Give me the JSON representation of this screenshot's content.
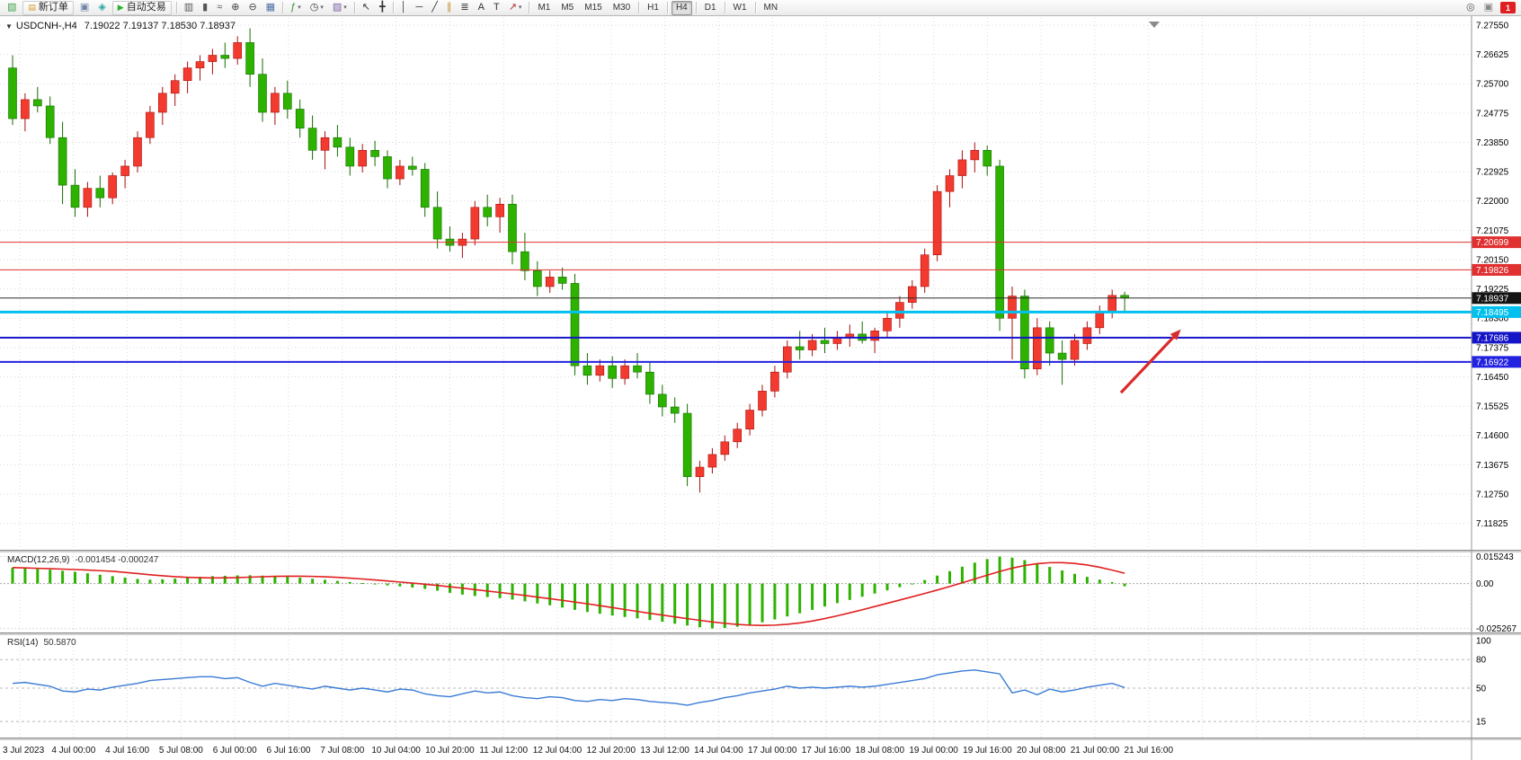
{
  "toolbar": {
    "left_items": [
      {
        "name": "new-chart-icon",
        "type": "icon",
        "glyph": "▧",
        "color": "#3fa34d"
      },
      {
        "name": "new-order-button",
        "type": "button",
        "glyph": "▤",
        "glyph_color": "#d79b2a",
        "label": "新订单"
      },
      {
        "name": "chart-windows-icon",
        "type": "icon",
        "glyph": "▣",
        "color": "#6f87a6"
      },
      {
        "name": "metaeditor-icon",
        "type": "icon",
        "glyph": "◈",
        "color": "#2aa7a7"
      },
      {
        "name": "autotrading-button",
        "type": "button",
        "glyph": "▶",
        "glyph_color": "#28b028",
        "label": "自动交易"
      },
      {
        "type": "sep"
      },
      {
        "name": "bar-chart-icon",
        "type": "icon",
        "glyph": "▥",
        "color": "#555555"
      },
      {
        "name": "candlestick-chart-icon",
        "type": "icon",
        "glyph": "▮",
        "color": "#555555"
      },
      {
        "name": "line-chart-icon",
        "type": "icon",
        "glyph": "≈",
        "color": "#555555"
      },
      {
        "name": "zoom-in-icon",
        "type": "icon",
        "glyph": "⊕",
        "color": "#444444"
      },
      {
        "name": "zoom-out-icon",
        "type": "icon",
        "glyph": "⊖",
        "color": "#444444"
      },
      {
        "name": "tile-windows-icon",
        "type": "icon",
        "glyph": "▦",
        "color": "#4a6fa5"
      },
      {
        "type": "sep"
      },
      {
        "name": "indicators-button",
        "type": "icon",
        "glyph": "ƒ",
        "color": "#2d8f2d",
        "dropdown": true
      },
      {
        "name": "periods-button",
        "type": "icon",
        "glyph": "◷",
        "color": "#444444",
        "dropdown": true
      },
      {
        "name": "templates-button",
        "type": "icon",
        "glyph": "▨",
        "color": "#7a5fa0",
        "dropdown": true
      },
      {
        "type": "sep"
      },
      {
        "name": "cursor-icon",
        "type": "icon",
        "glyph": "↖",
        "color": "#333333"
      },
      {
        "name": "crosshair-icon",
        "type": "icon",
        "glyph": "╋",
        "color": "#333333"
      },
      {
        "type": "sep"
      },
      {
        "name": "vertical-line-icon",
        "type": "icon",
        "glyph": "│",
        "color": "#333333"
      },
      {
        "name": "horizontal-line-icon",
        "type": "icon",
        "glyph": "─",
        "color": "#333333"
      },
      {
        "name": "trendline-icon",
        "type": "icon",
        "glyph": "╱",
        "color": "#333333"
      },
      {
        "name": "equidistant-channel-icon",
        "type": "icon",
        "glyph": "∥",
        "color": "#c58f2a"
      },
      {
        "name": "fibonacci-icon",
        "type": "icon",
        "glyph": "≣",
        "color": "#333333"
      },
      {
        "name": "text-icon",
        "type": "icon",
        "glyph": "A",
        "color": "#333333"
      },
      {
        "name": "text-label-icon",
        "type": "icon",
        "glyph": "T",
        "color": "#333333"
      },
      {
        "name": "arrows-icon",
        "type": "icon",
        "glyph": "↗",
        "color": "#b03030",
        "dropdown": true
      },
      {
        "type": "sep"
      }
    ],
    "timeframes": {
      "items": [
        "M1",
        "M5",
        "M15",
        "M30",
        "H1",
        "H4",
        "D1",
        "W1",
        "MN"
      ],
      "active": "H4"
    },
    "right_items": [
      {
        "name": "search-icon",
        "type": "icon",
        "glyph": "◎",
        "color": "#555555"
      },
      {
        "name": "chat-icon",
        "type": "icon",
        "glyph": "▣",
        "color": "#888888"
      },
      {
        "name": "notification-badge",
        "type": "badge",
        "label": "1",
        "color": "#e02020"
      }
    ]
  },
  "chart": {
    "symbol_title": "USDCNH-,H4",
    "ohlc_text": "7.19022 7.19137 7.18530 7.18937"
  },
  "chart_data": {
    "type": "candlestick",
    "symbol": "USDCNH-",
    "timeframe": "H4",
    "last_ohlc": {
      "open": 7.19022,
      "high": 7.19137,
      "low": 7.1853,
      "close": 7.18937
    },
    "price_axis_labels": [
      "7.27550",
      "7.26625",
      "7.25700",
      "7.24775",
      "7.23850",
      "7.22925",
      "7.22000",
      "7.21075",
      "7.20150",
      "7.19225",
      "7.18300",
      "7.17375",
      "7.16450",
      "7.15525",
      "7.14600",
      "7.13675",
      "7.12750",
      "7.11825"
    ],
    "time_axis_labels": [
      "3 Jul 2023",
      "4 Jul 00:00",
      "4 Jul 16:00",
      "5 Jul 08:00",
      "6 Jul 00:00",
      "6 Jul 16:00",
      "7 Jul 08:00",
      "10 Jul 04:00",
      "10 Jul 20:00",
      "11 Jul 12:00",
      "12 Jul 04:00",
      "12 Jul 20:00",
      "13 Jul 12:00",
      "14 Jul 04:00",
      "17 Jul 00:00",
      "17 Jul 16:00",
      "18 Jul 08:00",
      "19 Jul 00:00",
      "19 Jul 16:00",
      "20 Jul 08:00",
      "21 Jul 00:00",
      "21 Jul 16:00"
    ],
    "colors": {
      "bull": "#f23b2e",
      "bull_border": "#aa0e0e",
      "bear": "#2db200",
      "bear_border": "#156e00",
      "grid": "#d9d9d9",
      "macd_hist": "#2db200",
      "macd_signal": "#e02020",
      "rsi_line": "#3a7bd5"
    },
    "candles": [
      [
        7.262,
        7.266,
        7.244,
        7.246
      ],
      [
        7.246,
        7.254,
        7.242,
        7.252
      ],
      [
        7.252,
        7.256,
        7.248,
        7.25
      ],
      [
        7.25,
        7.253,
        7.238,
        7.24
      ],
      [
        7.24,
        7.245,
        7.219,
        7.225
      ],
      [
        7.225,
        7.23,
        7.215,
        7.218
      ],
      [
        7.218,
        7.226,
        7.215,
        7.224
      ],
      [
        7.224,
        7.228,
        7.218,
        7.221
      ],
      [
        7.221,
        7.229,
        7.219,
        7.228
      ],
      [
        7.228,
        7.233,
        7.224,
        7.231
      ],
      [
        7.231,
        7.242,
        7.229,
        7.24
      ],
      [
        7.24,
        7.25,
        7.238,
        7.248
      ],
      [
        7.248,
        7.256,
        7.244,
        7.254
      ],
      [
        7.254,
        7.26,
        7.25,
        7.258
      ],
      [
        7.258,
        7.264,
        7.254,
        7.262
      ],
      [
        7.262,
        7.266,
        7.258,
        7.264
      ],
      [
        7.264,
        7.268,
        7.26,
        7.266
      ],
      [
        7.266,
        7.27,
        7.262,
        7.265
      ],
      [
        7.265,
        7.272,
        7.263,
        7.27
      ],
      [
        7.27,
        7.2745,
        7.256,
        7.26
      ],
      [
        7.26,
        7.265,
        7.245,
        7.248
      ],
      [
        7.248,
        7.256,
        7.244,
        7.254
      ],
      [
        7.254,
        7.258,
        7.246,
        7.249
      ],
      [
        7.249,
        7.252,
        7.24,
        7.243
      ],
      [
        7.243,
        7.247,
        7.233,
        7.236
      ],
      [
        7.236,
        7.242,
        7.23,
        7.24
      ],
      [
        7.24,
        7.244,
        7.234,
        7.237
      ],
      [
        7.237,
        7.24,
        7.228,
        7.231
      ],
      [
        7.231,
        7.238,
        7.229,
        7.236
      ],
      [
        7.236,
        7.239,
        7.231,
        7.234
      ],
      [
        7.234,
        7.236,
        7.224,
        7.227
      ],
      [
        7.227,
        7.233,
        7.225,
        7.231
      ],
      [
        7.231,
        7.234,
        7.228,
        7.23
      ],
      [
        7.23,
        7.232,
        7.215,
        7.218
      ],
      [
        7.218,
        7.223,
        7.205,
        7.208
      ],
      [
        7.208,
        7.212,
        7.204,
        7.206
      ],
      [
        7.206,
        7.21,
        7.202,
        7.208
      ],
      [
        7.208,
        7.22,
        7.206,
        7.218
      ],
      [
        7.218,
        7.222,
        7.212,
        7.215
      ],
      [
        7.215,
        7.221,
        7.21,
        7.219
      ],
      [
        7.219,
        7.222,
        7.2,
        7.204
      ],
      [
        7.204,
        7.21,
        7.195,
        7.198
      ],
      [
        7.198,
        7.201,
        7.19,
        7.193
      ],
      [
        7.193,
        7.198,
        7.191,
        7.196
      ],
      [
        7.196,
        7.199,
        7.192,
        7.194
      ],
      [
        7.194,
        7.197,
        7.165,
        7.168
      ],
      [
        7.168,
        7.172,
        7.162,
        7.165
      ],
      [
        7.165,
        7.17,
        7.163,
        7.168
      ],
      [
        7.168,
        7.171,
        7.161,
        7.164
      ],
      [
        7.164,
        7.17,
        7.162,
        7.168
      ],
      [
        7.168,
        7.172,
        7.164,
        7.166
      ],
      [
        7.166,
        7.169,
        7.156,
        7.159
      ],
      [
        7.159,
        7.162,
        7.152,
        7.155
      ],
      [
        7.155,
        7.158,
        7.15,
        7.153
      ],
      [
        7.153,
        7.156,
        7.13,
        7.133
      ],
      [
        7.133,
        7.138,
        7.128,
        7.136
      ],
      [
        7.136,
        7.142,
        7.134,
        7.14
      ],
      [
        7.14,
        7.146,
        7.138,
        7.144
      ],
      [
        7.144,
        7.15,
        7.142,
        7.148
      ],
      [
        7.148,
        7.156,
        7.146,
        7.154
      ],
      [
        7.154,
        7.162,
        7.152,
        7.16
      ],
      [
        7.16,
        7.168,
        7.158,
        7.166
      ],
      [
        7.166,
        7.176,
        7.164,
        7.174
      ],
      [
        7.174,
        7.179,
        7.17,
        7.173
      ],
      [
        7.173,
        7.178,
        7.171,
        7.176
      ],
      [
        7.176,
        7.18,
        7.172,
        7.175
      ],
      [
        7.175,
        7.179,
        7.173,
        7.177
      ],
      [
        7.177,
        7.181,
        7.174,
        7.178
      ],
      [
        7.178,
        7.182,
        7.175,
        7.176
      ],
      [
        7.176,
        7.18,
        7.172,
        7.179
      ],
      [
        7.179,
        7.185,
        7.177,
        7.183
      ],
      [
        7.183,
        7.19,
        7.18,
        7.188
      ],
      [
        7.188,
        7.195,
        7.186,
        7.193
      ],
      [
        7.193,
        7.205,
        7.191,
        7.203
      ],
      [
        7.203,
        7.225,
        7.201,
        7.223
      ],
      [
        7.223,
        7.23,
        7.218,
        7.228
      ],
      [
        7.228,
        7.236,
        7.224,
        7.233
      ],
      [
        7.233,
        7.2385,
        7.229,
        7.236
      ],
      [
        7.236,
        7.2375,
        7.228,
        7.231
      ],
      [
        7.231,
        7.233,
        7.179,
        7.183
      ],
      [
        7.183,
        7.193,
        7.17,
        7.19
      ],
      [
        7.19,
        7.192,
        7.164,
        7.167
      ],
      [
        7.167,
        7.183,
        7.165,
        7.18
      ],
      [
        7.18,
        7.182,
        7.168,
        7.172
      ],
      [
        7.172,
        7.176,
        7.162,
        7.17
      ],
      [
        7.17,
        7.178,
        7.168,
        7.176
      ],
      [
        7.175,
        7.182,
        7.173,
        7.18
      ],
      [
        7.18,
        7.187,
        7.178,
        7.185
      ],
      [
        7.185,
        7.192,
        7.183,
        7.1902
      ],
      [
        7.19022,
        7.19137,
        7.1853,
        7.18937
      ]
    ],
    "horizontal_lines": [
      {
        "price": 7.20699,
        "label": "7.20699",
        "color": "#e03030",
        "width": 1
      },
      {
        "price": 7.19826,
        "label": "7.19826",
        "color": "#e03030",
        "width": 1
      },
      {
        "price": 7.18937,
        "label": "7.18937",
        "color": "#2a2a2a",
        "width": 1,
        "badge": "#141414"
      },
      {
        "price": 7.18495,
        "label": "7.18495",
        "color": "#00c0f0",
        "width": 3
      },
      {
        "price": 7.17686,
        "label": "7.17686",
        "color": "#1515c8",
        "width": 2
      },
      {
        "price": 7.16922,
        "label": "7.16922",
        "color": "#2222e0",
        "width": 2
      }
    ],
    "arrow_annotation": {
      "color": "#d92b2b",
      "tail": {
        "bar_index": 88.7,
        "price": 7.1595
      },
      "tip": {
        "bar_index": 93.5,
        "price": 7.1795
      }
    },
    "indicators": [
      {
        "name": "MACD",
        "label": "MACD(12,26,9)",
        "values_text": "-0.001454 -0.000247",
        "axis_labels": [
          "0.015243",
          "0.00",
          "-0.025267"
        ],
        "axis_values": [
          0.015243,
          0,
          -0.025267
        ],
        "histogram": [
          0.009,
          0.0086,
          0.0082,
          0.0078,
          0.0072,
          0.0066,
          0.0058,
          0.005,
          0.0042,
          0.0034,
          0.0026,
          0.0022,
          0.0024,
          0.0028,
          0.0033,
          0.0038,
          0.0042,
          0.0044,
          0.0046,
          0.0047,
          0.0045,
          0.0042,
          0.0038,
          0.0033,
          0.0027,
          0.0021,
          0.0015,
          0.0009,
          0.0003,
          -0.0003,
          -0.001,
          -0.0016,
          -0.0022,
          -0.003,
          -0.004,
          -0.0052,
          -0.0062,
          -0.007,
          -0.0076,
          -0.0082,
          -0.009,
          -0.01,
          -0.0112,
          -0.0122,
          -0.0135,
          -0.0148,
          -0.016,
          -0.017,
          -0.018,
          -0.0188,
          -0.0196,
          -0.0205,
          -0.0215,
          -0.0226,
          -0.0236,
          -0.0246,
          -0.0253,
          -0.025,
          -0.0243,
          -0.0232,
          -0.0218,
          -0.0202,
          -0.0185,
          -0.0167,
          -0.0148,
          -0.0129,
          -0.011,
          -0.0092,
          -0.0074,
          -0.0056,
          -0.0038,
          -0.002,
          -0.0002,
          0.002,
          0.0045,
          0.007,
          0.0095,
          0.0118,
          0.0138,
          0.0152,
          0.0146,
          0.0132,
          0.0114,
          0.0094,
          0.0074,
          0.0055,
          0.0038,
          0.0022,
          0.0008,
          -0.0015
        ]
      },
      {
        "name": "RSI",
        "label": "RSI(14)",
        "value_text": "50.5870",
        "axis_labels": [
          "100",
          "80",
          "50",
          "15"
        ],
        "levels": [
          80,
          50,
          15
        ],
        "values": [
          55,
          56,
          54,
          52,
          47,
          46,
          49,
          48,
          51,
          53,
          55,
          58,
          59,
          60,
          61,
          62,
          62,
          60,
          61,
          56,
          52,
          55,
          53,
          51,
          49,
          52,
          50,
          48,
          50,
          48,
          46,
          49,
          48,
          44,
          42,
          41,
          44,
          47,
          45,
          46,
          42,
          40,
          39,
          41,
          40,
          37,
          36,
          38,
          37,
          39,
          38,
          36,
          35,
          34,
          32,
          35,
          37,
          40,
          42,
          45,
          47,
          49,
          52,
          50,
          51,
          50,
          51,
          52,
          51,
          52,
          54,
          56,
          58,
          60,
          64,
          66,
          68,
          69,
          67,
          65,
          45,
          48,
          43,
          49,
          46,
          48,
          51,
          53,
          55,
          50.587
        ]
      }
    ]
  }
}
